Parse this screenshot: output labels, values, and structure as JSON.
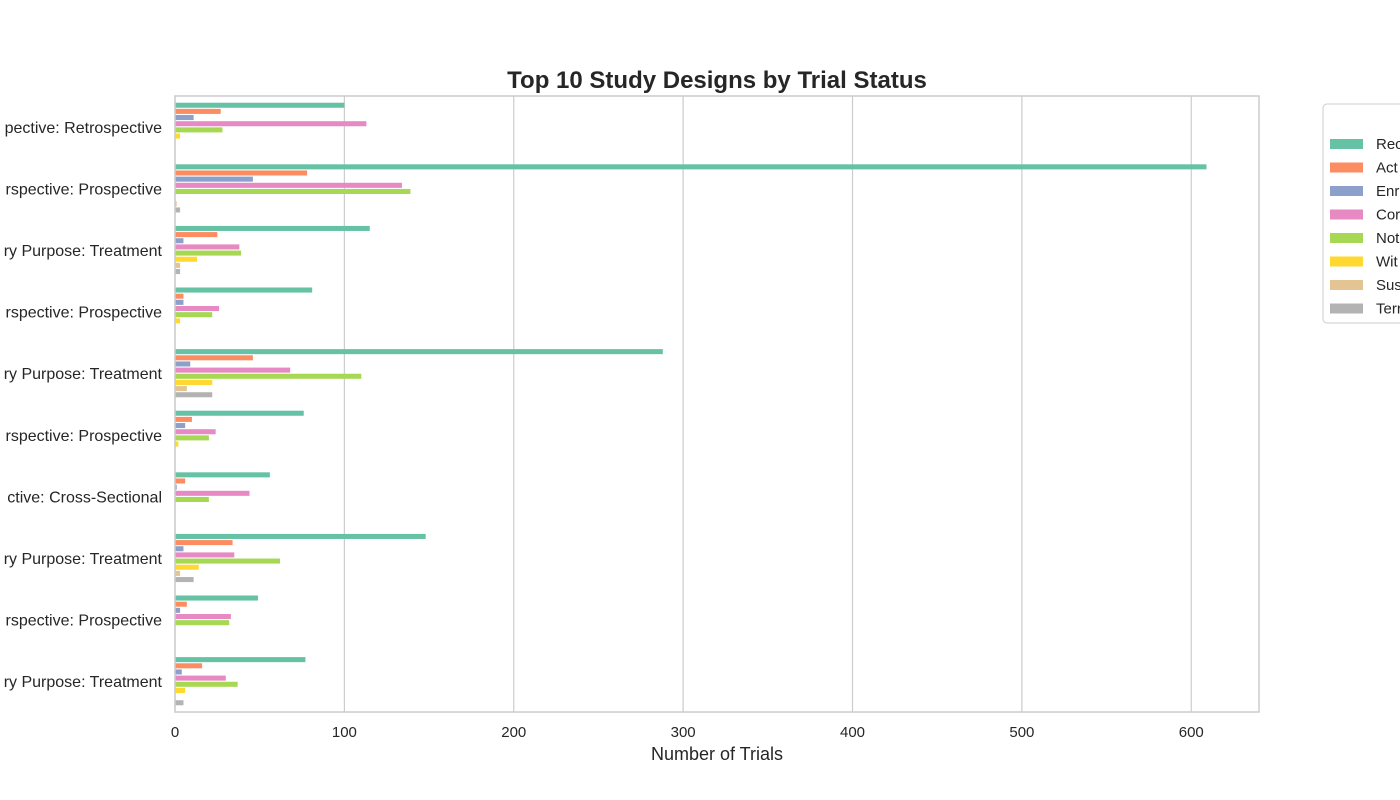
{
  "chart_data": {
    "type": "bar",
    "orientation": "horizontal",
    "title": "Top 10 Study Designs by Trial Status",
    "xlabel": "Number of Trials",
    "ylabel": "",
    "xlim": [
      0,
      640
    ],
    "xticks": [
      0,
      100,
      200,
      300,
      400,
      500,
      600
    ],
    "grid": true,
    "legend_position": "right",
    "categories": [
      "pective: Retrospective",
      "rspective: Prospective",
      "ry Purpose: Treatment",
      "rspective: Prospective",
      "ry Purpose: Treatment",
      "rspective: Prospective",
      "ctive: Cross-Sectional",
      "ry Purpose: Treatment",
      "rspective: Prospective",
      "ry Purpose: Treatment"
    ],
    "series": [
      {
        "name": "Rec",
        "color": "#66c2a5",
        "values": [
          100,
          609,
          115,
          81,
          288,
          76,
          56,
          148,
          49,
          77
        ]
      },
      {
        "name": "Act",
        "color": "#fc8d62",
        "values": [
          27,
          78,
          25,
          5,
          46,
          10,
          6,
          34,
          7,
          16
        ]
      },
      {
        "name": "Enr",
        "color": "#8da0cb",
        "values": [
          11,
          46,
          5,
          5,
          9,
          6,
          1,
          5,
          3,
          4
        ]
      },
      {
        "name": "Cor",
        "color": "#e78ac3",
        "values": [
          113,
          134,
          38,
          26,
          68,
          24,
          44,
          35,
          33,
          30
        ]
      },
      {
        "name": "Not",
        "color": "#a6d854",
        "values": [
          28,
          139,
          39,
          22,
          110,
          20,
          20,
          62,
          32,
          37
        ]
      },
      {
        "name": "Wit",
        "color": "#ffd92f",
        "values": [
          3,
          0,
          13,
          3,
          22,
          2,
          0,
          14,
          0,
          6
        ]
      },
      {
        "name": "Sus",
        "color": "#e5c494",
        "values": [
          0,
          1,
          3,
          0,
          7,
          0,
          0,
          3,
          0,
          0
        ]
      },
      {
        "name": "Terr",
        "color": "#b3b3b3",
        "values": [
          0,
          3,
          3,
          0,
          22,
          0,
          0,
          11,
          0,
          5
        ]
      }
    ]
  }
}
